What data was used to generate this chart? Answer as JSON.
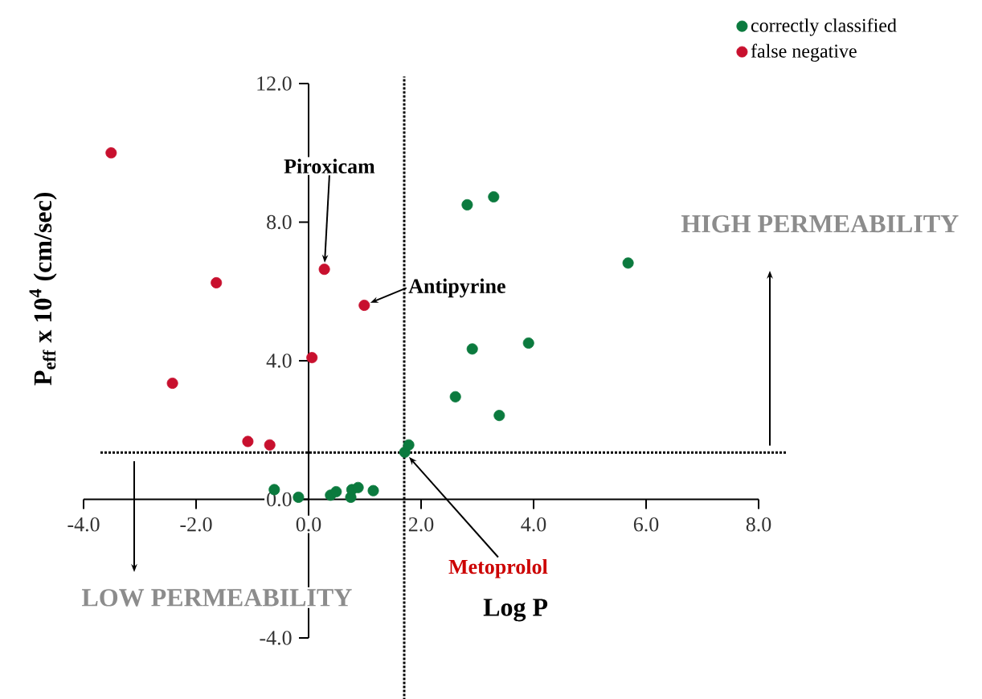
{
  "chart_data": {
    "type": "scatter",
    "xlabel": "Log P",
    "ylabel": "P$_{eff}$ x 10$^{4}$ (cm/sec)",
    "xlim": [
      -4,
      8
    ],
    "ylim": [
      -4,
      12
    ],
    "xticks": [
      {
        "value": -4,
        "label": "-4.0"
      },
      {
        "value": -2,
        "label": "-2.0"
      },
      {
        "value": 0,
        "label": "0.0"
      },
      {
        "value": 2,
        "label": "2.0"
      },
      {
        "value": 4,
        "label": "4.0"
      },
      {
        "value": 6,
        "label": "6.0"
      },
      {
        "value": 8,
        "label": "8.0"
      }
    ],
    "yticks": [
      {
        "value": -4,
        "label": "-4.0"
      },
      {
        "value": 0,
        "label": "0.0"
      },
      {
        "value": 4,
        "label": "4.0"
      },
      {
        "value": 8,
        "label": "8.0"
      },
      {
        "value": 12,
        "label": "12.0"
      }
    ],
    "series": [
      {
        "name": "correctly classified",
        "color": "#0b7a3e",
        "x": [
          -0.61,
          -0.18,
          0.39,
          0.49,
          0.75,
          0.77,
          0.88,
          1.15,
          1.71,
          1.78,
          2.82,
          3.29,
          5.68,
          2.91,
          3.91,
          2.61,
          3.39
        ],
        "values": [
          0.28,
          0.06,
          0.12,
          0.22,
          0.06,
          0.28,
          0.34,
          0.25,
          1.36,
          1.57,
          8.5,
          8.73,
          6.82,
          4.34,
          4.51,
          2.96,
          2.42
        ]
      },
      {
        "name": "false negative",
        "color": "#c8102e",
        "x": [
          -3.51,
          0.28,
          0.99,
          -1.64,
          0.06,
          -2.42,
          -1.08,
          -0.69
        ],
        "values": [
          10.0,
          6.64,
          5.6,
          6.25,
          4.09,
          3.35,
          1.67,
          1.57
        ]
      }
    ],
    "ref_lines": [
      {
        "axis": "y",
        "value": 1.35,
        "line_style": "dotted"
      },
      {
        "axis": "x",
        "value": 1.7,
        "line_style": "dotted"
      }
    ],
    "annotations": [
      {
        "text": "Piroxicam",
        "x": 0.28,
        "y": 6.64
      },
      {
        "text": "Antipyrine",
        "x": 0.99,
        "y": 5.6
      },
      {
        "text": "Metoprolol",
        "x": 1.71,
        "y": 1.36
      },
      "HIGH PERMEABILITY",
      "LOW PERMEABILITY"
    ],
    "legend": "top right",
    "grid": false
  }
}
